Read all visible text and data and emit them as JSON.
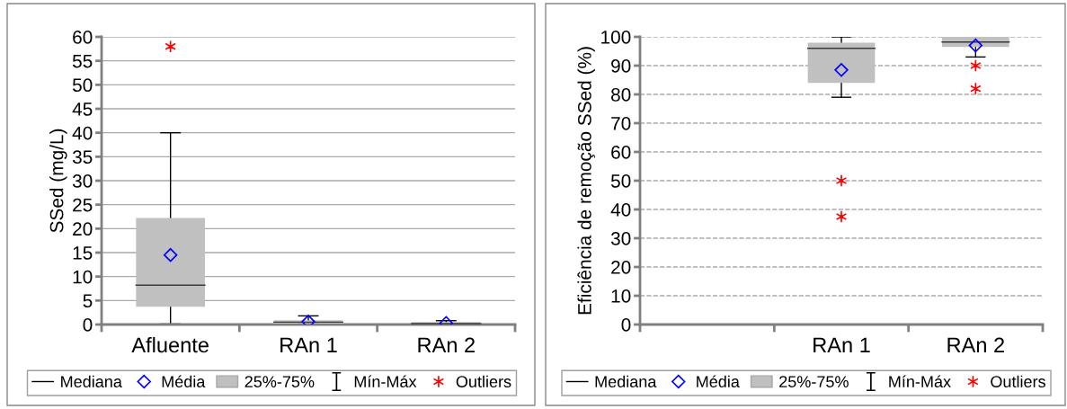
{
  "chart_data": [
    {
      "type": "box",
      "ylabel": "SSed (mg/L)",
      "categories": [
        "Afluente",
        "RAn 1",
        "RAn 2"
      ],
      "ylim": [
        0,
        60
      ],
      "yticks": [
        0,
        5,
        10,
        15,
        20,
        25,
        30,
        35,
        40,
        45,
        50,
        55,
        60
      ],
      "grid": "y",
      "series": [
        {
          "color": "#c0c0c0",
          "boxes": [
            {
              "low": 0.1,
              "q1": 3.7,
              "median": 8.2,
              "q3": 22.2,
              "high": 40,
              "mean": 14.5,
              "outliers": [
                58
              ]
            },
            {
              "low": 0.1,
              "q1": 0.3,
              "median": 0.5,
              "q3": 0.9,
              "high": 1.8,
              "mean": 0.6
            },
            {
              "low": 0.0,
              "q1": 0.1,
              "median": 0.2,
              "q3": 0.5,
              "high": 0.8,
              "mean": 0.3
            }
          ]
        }
      ],
      "annotations": [
        "Mediana",
        "Média",
        "25%-75%",
        "Mín-Máx",
        "Outliers"
      ]
    },
    {
      "type": "box",
      "ylabel": "Eficiência de remoção SSed (%)",
      "categories": [
        null,
        "RAn 1",
        "RAn 2"
      ],
      "ylim": [
        0,
        100
      ],
      "yticks": [
        0,
        10,
        20,
        30,
        40,
        50,
        60,
        70,
        80,
        90,
        100
      ],
      "grid": "y",
      "series": [
        {
          "color": "#c0c0c0",
          "boxes": [
            null,
            {
              "low": 79,
              "q1": 84,
              "median": 96,
              "q3": 98,
              "high": 100,
              "mean": 88.5,
              "outliers": [
                50,
                37.5
              ]
            },
            {
              "low": 93,
              "q1": 96.5,
              "median": 98.2,
              "q3": 100,
              "high": 100,
              "mean": 97,
              "outliers": [
                90,
                82
              ]
            }
          ]
        }
      ],
      "annotations": [
        "Mediana",
        "Média",
        "25%-75%",
        "Mín-Máx",
        "Outliers"
      ]
    }
  ]
}
